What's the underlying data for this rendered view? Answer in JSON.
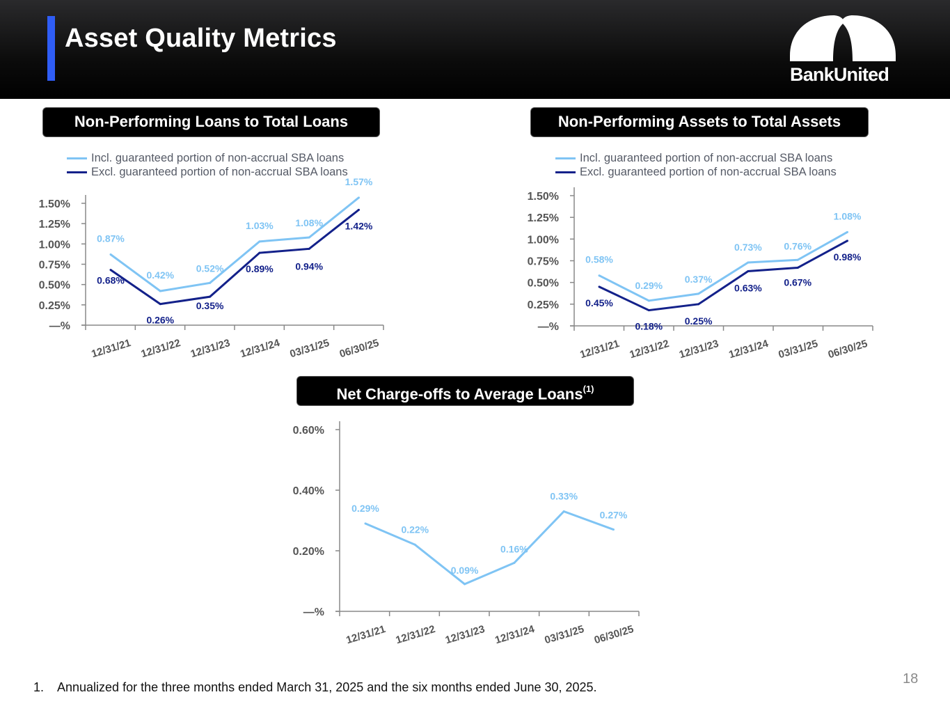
{
  "header": {
    "title": "Asset Quality Metrics",
    "logo_text": "BankUnited",
    "accent_color": "#2f5df5"
  },
  "colors": {
    "incl_series": "#7fc4f4",
    "excl_series": "#13218a",
    "axis": "#888888"
  },
  "legend": {
    "incl": "Incl. guaranteed portion of non-accrual SBA loans",
    "excl": "Excl. guaranteed portion of non-accrual SBA loans"
  },
  "chart_data": [
    {
      "id": "npl",
      "type": "line",
      "title": "Non-Performing Loans to Total Loans",
      "xlabel": "",
      "ylabel": "",
      "categories": [
        "12/31/21",
        "12/31/22",
        "12/31/23",
        "12/31/24",
        "03/31/25",
        "06/30/25"
      ],
      "y_ticks": [
        "—%",
        "0.25%",
        "0.50%",
        "0.75%",
        "1.00%",
        "1.25%",
        "1.50%"
      ],
      "ylim": [
        0,
        1.5
      ],
      "grid": false,
      "legend_position": "top",
      "series": [
        {
          "name": "Incl. guaranteed portion of non-accrual SBA loans",
          "values": [
            0.87,
            0.42,
            0.52,
            1.03,
            1.08,
            1.57
          ],
          "labels": [
            "0.87%",
            "0.42%",
            "0.52%",
            "1.03%",
            "1.08%",
            "1.57%"
          ]
        },
        {
          "name": "Excl. guaranteed portion of non-accrual SBA loans",
          "values": [
            0.68,
            0.26,
            0.35,
            0.89,
            0.94,
            1.42
          ],
          "labels": [
            "0.68%",
            "0.26%",
            "0.35%",
            "0.89%",
            "0.94%",
            "1.42%"
          ]
        }
      ]
    },
    {
      "id": "npa",
      "type": "line",
      "title": "Non-Performing Assets to Total Assets",
      "xlabel": "",
      "ylabel": "",
      "categories": [
        "12/31/21",
        "12/31/22",
        "12/31/23",
        "12/31/24",
        "03/31/25",
        "06/30/25"
      ],
      "y_ticks": [
        "—%",
        "0.25%",
        "0.50%",
        "0.75%",
        "1.00%",
        "1.25%",
        "1.50%"
      ],
      "ylim": [
        0,
        1.5
      ],
      "grid": false,
      "legend_position": "top",
      "series": [
        {
          "name": "Incl. guaranteed portion of non-accrual SBA loans",
          "values": [
            0.58,
            0.29,
            0.37,
            0.73,
            0.76,
            1.08
          ],
          "labels": [
            "0.58%",
            "0.29%",
            "0.37%",
            "0.73%",
            "0.76%",
            "1.08%"
          ]
        },
        {
          "name": "Excl. guaranteed portion of non-accrual SBA loans",
          "values": [
            0.45,
            0.18,
            0.25,
            0.63,
            0.67,
            0.98
          ],
          "labels": [
            "0.45%",
            "0.18%",
            "0.25%",
            "0.63%",
            "0.67%",
            "0.98%"
          ]
        }
      ]
    },
    {
      "id": "nco",
      "type": "line",
      "title": "Net Charge-offs to Average Loans",
      "title_superscript": "(1)",
      "xlabel": "",
      "ylabel": "",
      "categories": [
        "12/31/21",
        "12/31/22",
        "12/31/23",
        "12/31/24",
        "03/31/25",
        "06/30/25"
      ],
      "y_ticks": [
        "—%",
        "0.20%",
        "0.40%",
        "0.60%"
      ],
      "ylim": [
        0,
        0.6
      ],
      "grid": false,
      "series": [
        {
          "name": "Net charge-offs to average loans",
          "values": [
            0.29,
            0.22,
            0.09,
            0.16,
            0.33,
            0.27
          ],
          "labels": [
            "0.29%",
            "0.22%",
            "0.09%",
            "0.16%",
            "0.33%",
            "0.27%"
          ]
        }
      ]
    }
  ],
  "footnote": {
    "number": "1.",
    "text": "Annualized for the three months ended March 31, 2025 and the six months ended June 30, 2025."
  },
  "page_number": "18"
}
